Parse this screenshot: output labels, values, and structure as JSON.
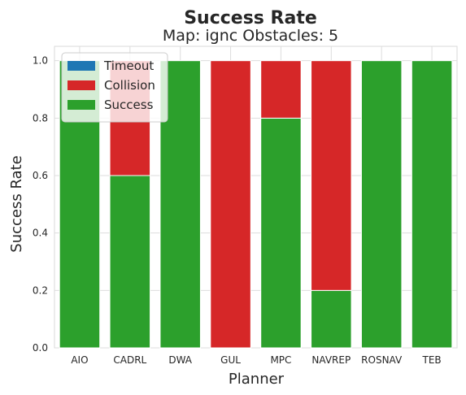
{
  "chart_data": {
    "type": "bar",
    "stacked": true,
    "title": "Success Rate",
    "subtitle": "Map: ignc Obstacles: 5",
    "xlabel": "Planner",
    "ylabel": "Success Rate",
    "ylim": [
      0,
      1.05
    ],
    "yticks": [
      "0.0",
      "0.2",
      "0.4",
      "0.6",
      "0.8",
      "1.0"
    ],
    "grid": true,
    "legend_position": "top-left",
    "categories": [
      "AIO",
      "CADRL",
      "DWA",
      "GUL",
      "MPC",
      "NAVREP",
      "ROSNAV",
      "TEB"
    ],
    "series": [
      {
        "name": "Timeout",
        "color": "#1f77b4",
        "values": [
          0,
          0,
          0,
          0,
          0,
          0,
          0,
          0
        ]
      },
      {
        "name": "Collision",
        "color": "#d62728",
        "values": [
          0,
          0.4,
          0,
          1.0,
          0.2,
          0.8,
          0,
          0
        ]
      },
      {
        "name": "Success",
        "color": "#2ca02c",
        "values": [
          1.0,
          0.6,
          1.0,
          0.0,
          0.8,
          0.2,
          1.0,
          1.0
        ]
      }
    ]
  }
}
